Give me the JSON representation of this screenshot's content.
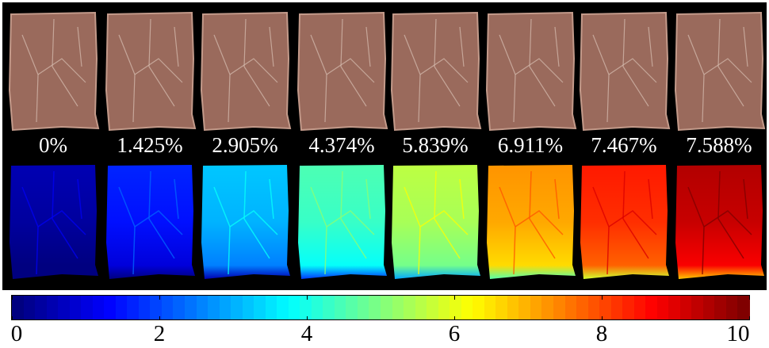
{
  "strain_labels": [
    "0%",
    "1.425%",
    "2.905%",
    "4.374%",
    "5.839%",
    "6.911%",
    "7.467%",
    "7.588%"
  ],
  "heatmap_levels": [
    0.3,
    1.4,
    3.0,
    4.3,
    5.4,
    7.1,
    8.3,
    9.3
  ],
  "sample_colors": {
    "photo_fill": "#9a6a5c",
    "photo_edge": "#c39a8a",
    "vein": "#d8c0b4"
  },
  "colorbar": {
    "min": 0,
    "max": 10,
    "tick_labels": [
      "0",
      "2",
      "4",
      "6",
      "8",
      "10"
    ],
    "colormap": "jet"
  }
}
